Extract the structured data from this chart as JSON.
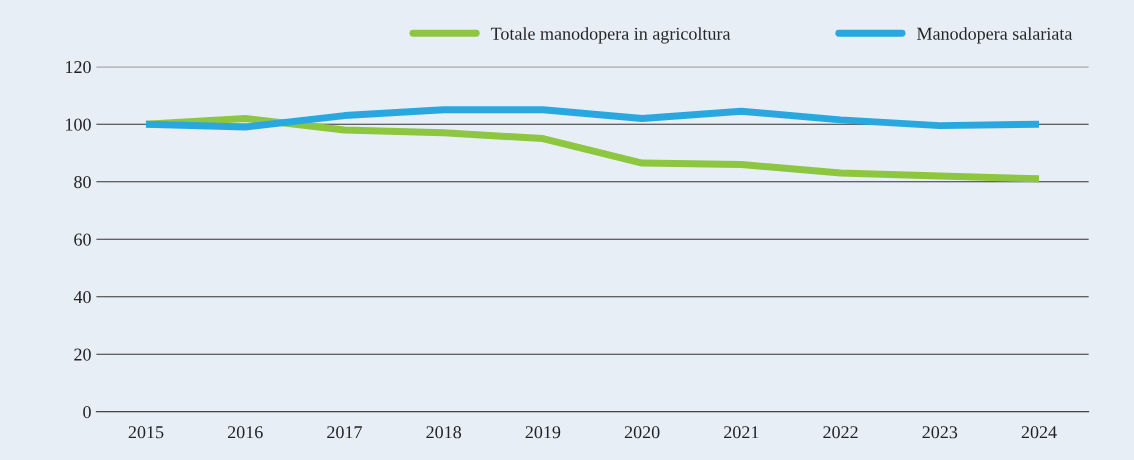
{
  "chart_data": {
    "type": "line",
    "categories": [
      "2015",
      "2016",
      "2017",
      "2018",
      "2019",
      "2020",
      "2021",
      "2022",
      "2023",
      "2024"
    ],
    "series": [
      {
        "name": "Totale manodopera in agricoltura",
        "color": "#8dc63f",
        "values": [
          100,
          102,
          98,
          97,
          95,
          86.5,
          86,
          83,
          82,
          81
        ]
      },
      {
        "name": "Manodopera salariata",
        "color": "#29a8e0",
        "values": [
          100,
          99,
          103,
          105,
          105,
          102,
          104.5,
          101.5,
          99.5,
          100
        ]
      }
    ],
    "ylim": [
      0,
      120
    ],
    "yticks": [
      0,
      20,
      40,
      60,
      80,
      100,
      120
    ],
    "grid": "y",
    "legend": "top right",
    "line_style": "solid",
    "marker": "none"
  }
}
